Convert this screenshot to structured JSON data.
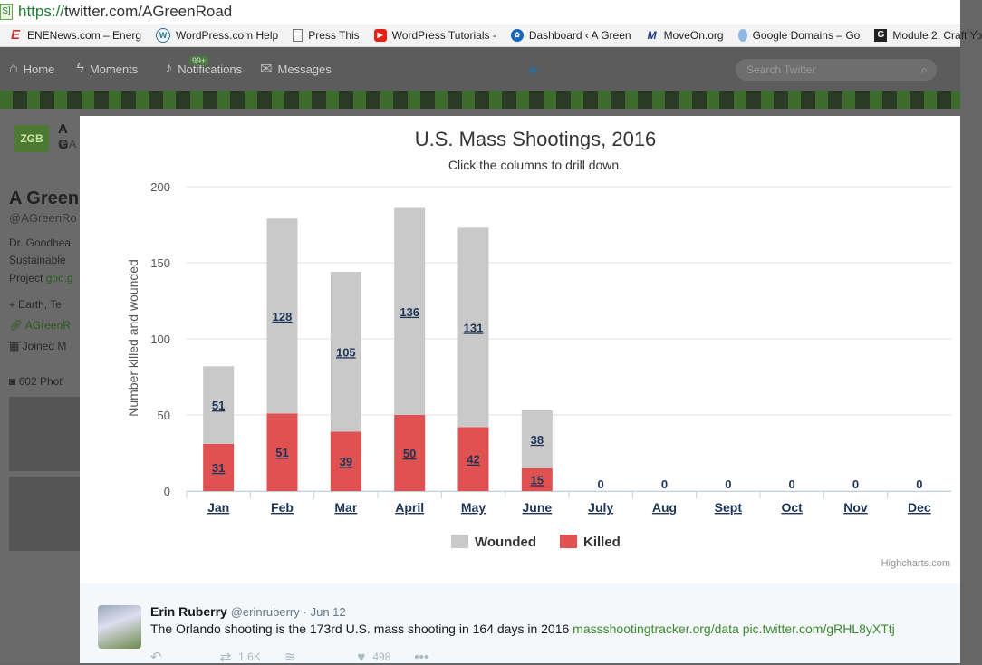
{
  "browser": {
    "url_scheme": "https://",
    "url_rest": "twitter.com/AGreenRoad",
    "lock": "S]",
    "bookmarks": [
      {
        "icon": "ene-icon",
        "label": "ENENews.com – Energ"
      },
      {
        "icon": "wordpress-icon",
        "label": "WordPress.com Help"
      },
      {
        "icon": "page-icon",
        "label": "Press This"
      },
      {
        "icon": "youtube-icon",
        "label": "WordPress Tutorials -"
      },
      {
        "icon": "dashboard-icon",
        "label": "Dashboard ‹ A Green"
      },
      {
        "icon": "moveon-icon",
        "label": "MoveOn.org"
      },
      {
        "icon": "google-domains-icon",
        "label": "Google Domains – Go"
      },
      {
        "icon": "github-icon",
        "label": "Module 2: Craft Yo"
      }
    ]
  },
  "nav": {
    "home": "Home",
    "moments": "Moments",
    "notifications": "Notifications",
    "badge": "99+",
    "messages": "Messages",
    "search_placeholder": "Search Twitter"
  },
  "profile": {
    "logo": "ZGB",
    "name": "A Green",
    "handle": "@AGreenRo",
    "short_name": "A G",
    "short_handle": "@A",
    "bio1": "Dr. Goodhea",
    "bio2": "Sustainable",
    "bio3_a": "Project ",
    "bio3_b": "goo.g",
    "location": "Earth, Te",
    "website": "AGreenR",
    "joined": "Joined M",
    "photos": "602 Phot"
  },
  "chart_data": {
    "type": "bar",
    "stacked": true,
    "title": "U.S. Mass Shootings, 2016",
    "subtitle": "Click the columns to drill down.",
    "ylabel": "Number killed and wounded",
    "ylim": [
      0,
      200
    ],
    "yticks": [
      0,
      50,
      100,
      150,
      200
    ],
    "categories": [
      "Jan",
      "Feb",
      "Mar",
      "April",
      "May",
      "June",
      "July",
      "Aug",
      "Sept",
      "Oct",
      "Nov",
      "Dec"
    ],
    "series": [
      {
        "name": "Wounded",
        "color": "#c9c9c9",
        "values": [
          51,
          128,
          105,
          136,
          131,
          38,
          0,
          0,
          0,
          0,
          0,
          0
        ]
      },
      {
        "name": "Killed",
        "color": "#e05252",
        "values": [
          31,
          51,
          39,
          50,
          42,
          15,
          0,
          0,
          0,
          0,
          0,
          0
        ]
      }
    ],
    "legend": "bottom-center",
    "grid": true,
    "credits": "Highcharts.com"
  },
  "tweet": {
    "name": "Erin Ruberry",
    "handle": "@erinruberry",
    "date": "· Jun 12",
    "text": "The Orlando shooting is the 173rd U.S. mass shooting in 164 days in 2016 ",
    "link1": "massshootingtracker.org/data",
    "link2": "pic.twitter.com/gRHL8yXTtj",
    "retweets": "1.6K",
    "likes": "498"
  }
}
